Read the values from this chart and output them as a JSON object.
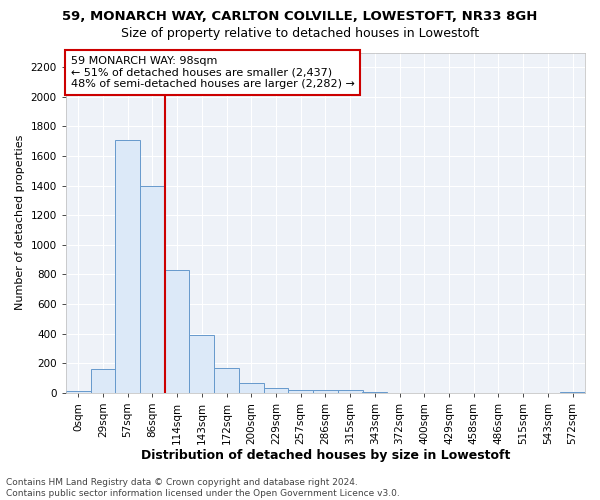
{
  "title1": "59, MONARCH WAY, CARLTON COLVILLE, LOWESTOFT, NR33 8GH",
  "title2": "Size of property relative to detached houses in Lowestoft",
  "xlabel": "Distribution of detached houses by size in Lowestoft",
  "ylabel": "Number of detached properties",
  "categories": [
    "0sqm",
    "29sqm",
    "57sqm",
    "86sqm",
    "114sqm",
    "143sqm",
    "172sqm",
    "200sqm",
    "229sqm",
    "257sqm",
    "286sqm",
    "315sqm",
    "343sqm",
    "372sqm",
    "400sqm",
    "429sqm",
    "458sqm",
    "486sqm",
    "515sqm",
    "543sqm",
    "572sqm"
  ],
  "values": [
    15,
    160,
    1710,
    1400,
    830,
    390,
    170,
    65,
    30,
    22,
    20,
    20,
    8,
    0,
    0,
    0,
    0,
    0,
    0,
    0,
    5
  ],
  "bar_color": "#dce9f8",
  "bar_edge_color": "#6699cc",
  "vline_color": "#cc0000",
  "annotation_text": "59 MONARCH WAY: 98sqm\n← 51% of detached houses are smaller (2,437)\n48% of semi-detached houses are larger (2,282) →",
  "annotation_box_color": "#ffffff",
  "annotation_box_edge_color": "#cc0000",
  "ylim": [
    0,
    2300
  ],
  "yticks": [
    0,
    200,
    400,
    600,
    800,
    1000,
    1200,
    1400,
    1600,
    1800,
    2000,
    2200
  ],
  "footnote": "Contains HM Land Registry data © Crown copyright and database right 2024.\nContains public sector information licensed under the Open Government Licence v3.0.",
  "background_color": "#ffffff",
  "plot_bg_color": "#eef2f8",
  "grid_color": "#ffffff",
  "title1_fontsize": 9.5,
  "title2_fontsize": 9,
  "xlabel_fontsize": 9,
  "ylabel_fontsize": 8,
  "tick_fontsize": 7.5,
  "annotation_fontsize": 8,
  "footnote_fontsize": 6.5
}
